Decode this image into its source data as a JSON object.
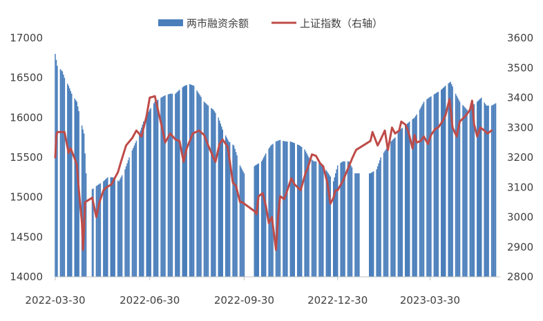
{
  "chart_data": {
    "type": "bar+line",
    "title": "",
    "xlabel": "",
    "x_tick_labels": [
      "2022-03-30",
      "2022-06-30",
      "2022-09-30",
      "2022-12-30",
      "2023-03-30"
    ],
    "x_range": [
      "2022-03-30",
      "2023-06-05"
    ],
    "y_left": {
      "range": [
        14000,
        17000
      ],
      "ticks": [
        "14000",
        "14500",
        "15000",
        "15500",
        "16000",
        "16500",
        "17000"
      ]
    },
    "y_right": {
      "range": [
        2800,
        3600
      ],
      "ticks": [
        "2800",
        "2900",
        "3000",
        "3100",
        "3200",
        "3300",
        "3400",
        "3500",
        "3600"
      ],
      "label": ""
    },
    "legend": {
      "placement": "top-center"
    },
    "colors": {
      "bar": "#4a7ebb",
      "line": "#be4b48"
    },
    "series": [
      {
        "name": "两市融资余额",
        "kind": "bar",
        "axis": "left",
        "points": [
          [
            "2022-03-30",
            16800
          ],
          [
            "2022-04-01",
            16650
          ],
          [
            "2022-04-06",
            16580
          ],
          [
            "2022-04-08",
            16500
          ],
          [
            "2022-04-12",
            16400
          ],
          [
            "2022-04-15",
            16300
          ],
          [
            "2022-04-20",
            16200
          ],
          [
            "2022-04-25",
            15900
          ],
          [
            "2022-04-27",
            15800
          ],
          [
            "2022-04-29",
            15300
          ],
          [
            "2022-05-05",
            15100
          ],
          [
            "2022-05-10",
            15150
          ],
          [
            "2022-05-16",
            15200
          ],
          [
            "2022-05-20",
            15250
          ],
          [
            "2022-05-25",
            15250
          ],
          [
            "2022-05-31",
            15200
          ],
          [
            "2022-06-06",
            15350
          ],
          [
            "2022-06-10",
            15500
          ],
          [
            "2022-06-15",
            15650
          ],
          [
            "2022-06-20",
            15800
          ],
          [
            "2022-06-24",
            15950
          ],
          [
            "2022-06-30",
            16100
          ],
          [
            "2022-07-05",
            16200
          ],
          [
            "2022-07-11",
            16250
          ],
          [
            "2022-07-15",
            16280
          ],
          [
            "2022-07-20",
            16300
          ],
          [
            "2022-07-25",
            16300
          ],
          [
            "2022-07-29",
            16350
          ],
          [
            "2022-08-03",
            16400
          ],
          [
            "2022-08-08",
            16420
          ],
          [
            "2022-08-12",
            16400
          ],
          [
            "2022-08-17",
            16300
          ],
          [
            "2022-08-22",
            16200
          ],
          [
            "2022-08-26",
            16150
          ],
          [
            "2022-08-31",
            16100
          ],
          [
            "2022-09-05",
            16000
          ],
          [
            "2022-09-09",
            15850
          ],
          [
            "2022-09-15",
            15700
          ],
          [
            "2022-09-20",
            15650
          ],
          [
            "2022-09-26",
            15400
          ],
          [
            "2022-09-30",
            15300
          ],
          [
            "2022-10-11",
            15400
          ],
          [
            "2022-10-17",
            15450
          ],
          [
            "2022-10-21",
            15550
          ],
          [
            "2022-10-26",
            15650
          ],
          [
            "2022-10-31",
            15700
          ],
          [
            "2022-11-04",
            15720
          ],
          [
            "2022-11-09",
            15700
          ],
          [
            "2022-11-14",
            15700
          ],
          [
            "2022-11-18",
            15680
          ],
          [
            "2022-11-23",
            15650
          ],
          [
            "2022-11-28",
            15600
          ],
          [
            "2022-12-02",
            15500
          ],
          [
            "2022-12-07",
            15450
          ],
          [
            "2022-12-12",
            15450
          ],
          [
            "2022-12-16",
            15400
          ],
          [
            "2022-12-21",
            15300
          ],
          [
            "2022-12-26",
            15200
          ],
          [
            "2022-12-30",
            15400
          ],
          [
            "2023-01-04",
            15450
          ],
          [
            "2023-01-10",
            15450
          ],
          [
            "2023-01-16",
            15300
          ],
          [
            "2023-01-31",
            15300
          ],
          [
            "2023-02-06",
            15350
          ],
          [
            "2023-02-10",
            15500
          ],
          [
            "2023-02-15",
            15600
          ],
          [
            "2023-02-20",
            15700
          ],
          [
            "2023-02-24",
            15750
          ],
          [
            "2023-03-01",
            15850
          ],
          [
            "2023-03-06",
            15900
          ],
          [
            "2023-03-10",
            15950
          ],
          [
            "2023-03-15",
            16000
          ],
          [
            "2023-03-20",
            16100
          ],
          [
            "2023-03-24",
            16200
          ],
          [
            "2023-03-29",
            16250
          ],
          [
            "2023-04-04",
            16300
          ],
          [
            "2023-04-10",
            16350
          ],
          [
            "2023-04-14",
            16400
          ],
          [
            "2023-04-19",
            16450
          ],
          [
            "2023-04-24",
            16300
          ],
          [
            "2023-04-28",
            16200
          ],
          [
            "2023-05-05",
            16100
          ],
          [
            "2023-05-10",
            16150
          ],
          [
            "2023-05-15",
            16200
          ],
          [
            "2023-05-19",
            16250
          ],
          [
            "2023-05-24",
            16150
          ],
          [
            "2023-05-29",
            16150
          ],
          [
            "2023-06-02",
            16180
          ]
        ]
      },
      {
        "name": "上证指数（右轴）",
        "kind": "line",
        "axis": "right",
        "points": [
          [
            "2022-03-30",
            3200
          ],
          [
            "2022-03-31",
            3270
          ],
          [
            "2022-04-01",
            3285
          ],
          [
            "2022-04-08",
            3285
          ],
          [
            "2022-04-12",
            3215
          ],
          [
            "2022-04-14",
            3230
          ],
          [
            "2022-04-18",
            3195
          ],
          [
            "2022-04-20",
            3175
          ],
          [
            "2022-04-22",
            3090
          ],
          [
            "2022-04-25",
            2980
          ],
          [
            "2022-04-26",
            2890
          ],
          [
            "2022-04-27",
            2960
          ],
          [
            "2022-04-28",
            3050
          ],
          [
            "2022-05-05",
            3065
          ],
          [
            "2022-05-09",
            3000
          ],
          [
            "2022-05-12",
            3050
          ],
          [
            "2022-05-16",
            3090
          ],
          [
            "2022-05-19",
            3100
          ],
          [
            "2022-05-24",
            3110
          ],
          [
            "2022-05-26",
            3125
          ],
          [
            "2022-05-30",
            3150
          ],
          [
            "2022-06-02",
            3185
          ],
          [
            "2022-06-07",
            3240
          ],
          [
            "2022-06-13",
            3265
          ],
          [
            "2022-06-17",
            3290
          ],
          [
            "2022-06-22",
            3270
          ],
          [
            "2022-06-27",
            3340
          ],
          [
            "2022-06-30",
            3400
          ],
          [
            "2022-07-05",
            3405
          ],
          [
            "2022-07-08",
            3360
          ],
          [
            "2022-07-12",
            3300
          ],
          [
            "2022-07-15",
            3250
          ],
          [
            "2022-07-20",
            3280
          ],
          [
            "2022-07-25",
            3260
          ],
          [
            "2022-07-29",
            3255
          ],
          [
            "2022-08-02",
            3185
          ],
          [
            "2022-08-05",
            3230
          ],
          [
            "2022-08-11",
            3280
          ],
          [
            "2022-08-17",
            3290
          ],
          [
            "2022-08-22",
            3275
          ],
          [
            "2022-08-26",
            3240
          ],
          [
            "2022-08-31",
            3200
          ],
          [
            "2022-09-02",
            3185
          ],
          [
            "2022-09-06",
            3245
          ],
          [
            "2022-09-09",
            3260
          ],
          [
            "2022-09-14",
            3235
          ],
          [
            "2022-09-19",
            3115
          ],
          [
            "2022-09-22",
            3105
          ],
          [
            "2022-09-26",
            3050
          ],
          [
            "2022-09-28",
            3050
          ],
          [
            "2022-10-10",
            3020
          ],
          [
            "2022-10-12",
            3010
          ],
          [
            "2022-10-14",
            3070
          ],
          [
            "2022-10-18",
            3080
          ],
          [
            "2022-10-21",
            3040
          ],
          [
            "2022-10-24",
            2980
          ],
          [
            "2022-10-27",
            3000
          ],
          [
            "2022-10-31",
            2890
          ],
          [
            "2022-11-02",
            3000
          ],
          [
            "2022-11-04",
            3070
          ],
          [
            "2022-11-08",
            3060
          ],
          [
            "2022-11-11",
            3090
          ],
          [
            "2022-11-15",
            3130
          ],
          [
            "2022-11-18",
            3110
          ],
          [
            "2022-11-24",
            3090
          ],
          [
            "2022-11-29",
            3150
          ],
          [
            "2022-12-01",
            3165
          ],
          [
            "2022-12-05",
            3210
          ],
          [
            "2022-12-09",
            3205
          ],
          [
            "2022-12-13",
            3180
          ],
          [
            "2022-12-16",
            3170
          ],
          [
            "2022-12-20",
            3115
          ],
          [
            "2022-12-23",
            3045
          ],
          [
            "2022-12-26",
            3065
          ],
          [
            "2022-12-28",
            3090
          ],
          [
            "2022-12-30",
            3090
          ],
          [
            "2023-01-04",
            3120
          ],
          [
            "2023-01-10",
            3170
          ],
          [
            "2023-01-13",
            3195
          ],
          [
            "2023-01-17",
            3225
          ],
          [
            "2023-01-31",
            3255
          ],
          [
            "2023-02-02",
            3285
          ],
          [
            "2023-02-07",
            3240
          ],
          [
            "2023-02-10",
            3260
          ],
          [
            "2023-02-14",
            3290
          ],
          [
            "2023-02-17",
            3225
          ],
          [
            "2023-02-21",
            3300
          ],
          [
            "2023-02-24",
            3280
          ],
          [
            "2023-02-28",
            3290
          ],
          [
            "2023-03-02",
            3320
          ],
          [
            "2023-03-06",
            3310
          ],
          [
            "2023-03-09",
            3285
          ],
          [
            "2023-03-13",
            3230
          ],
          [
            "2023-03-15",
            3275
          ],
          [
            "2023-03-17",
            3250
          ],
          [
            "2023-03-21",
            3255
          ],
          [
            "2023-03-24",
            3270
          ],
          [
            "2023-03-28",
            3245
          ],
          [
            "2023-03-31",
            3275
          ],
          [
            "2023-04-04",
            3295
          ],
          [
            "2023-04-07",
            3300
          ],
          [
            "2023-04-11",
            3320
          ],
          [
            "2023-04-14",
            3340
          ],
          [
            "2023-04-18",
            3395
          ],
          [
            "2023-04-21",
            3300
          ],
          [
            "2023-04-25",
            3270
          ],
          [
            "2023-04-28",
            3320
          ],
          [
            "2023-05-04",
            3340
          ],
          [
            "2023-05-08",
            3360
          ],
          [
            "2023-05-10",
            3390
          ],
          [
            "2023-05-12",
            3310
          ],
          [
            "2023-05-15",
            3270
          ],
          [
            "2023-05-18",
            3300
          ],
          [
            "2023-05-22",
            3290
          ],
          [
            "2023-05-25",
            3280
          ],
          [
            "2023-05-29",
            3290
          ]
        ]
      }
    ]
  }
}
